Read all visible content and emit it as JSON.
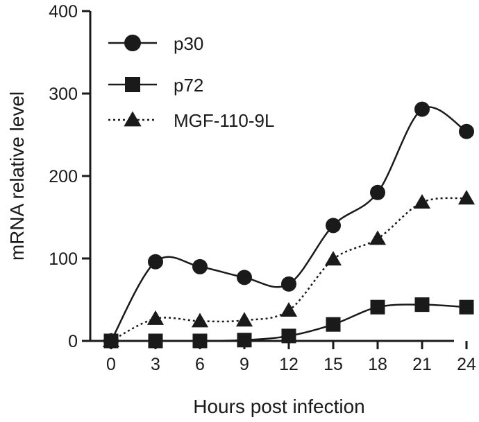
{
  "chart_data": {
    "type": "line",
    "title": "",
    "xlabel": "Hours post infection",
    "ylabel": "mRNA relative level",
    "x": [
      0,
      3,
      6,
      9,
      12,
      15,
      18,
      21,
      24
    ],
    "xlim": [
      0,
      24
    ],
    "ylim": [
      0,
      400
    ],
    "xticks": [
      "0",
      "3",
      "6",
      "9",
      "12",
      "15",
      "18",
      "21",
      "24"
    ],
    "yticks": [
      "0",
      "100",
      "200",
      "300",
      "400"
    ],
    "grid": false,
    "legend_position": "top-left",
    "series": [
      {
        "name": "p30",
        "marker": "circle",
        "line": "solid",
        "color": "#1a1a1a",
        "values": [
          0,
          96,
          90,
          77,
          69,
          140,
          180,
          281,
          254
        ]
      },
      {
        "name": "p72",
        "marker": "square",
        "line": "solid",
        "color": "#1a1a1a",
        "values": [
          0,
          0,
          0,
          1,
          6,
          20,
          41,
          44,
          41
        ]
      },
      {
        "name": "MGF-110-9L",
        "marker": "triangle",
        "line": "dotted",
        "color": "#1a1a1a",
        "values": [
          0,
          27,
          24,
          25,
          37,
          99,
          124,
          168,
          173
        ]
      }
    ]
  }
}
